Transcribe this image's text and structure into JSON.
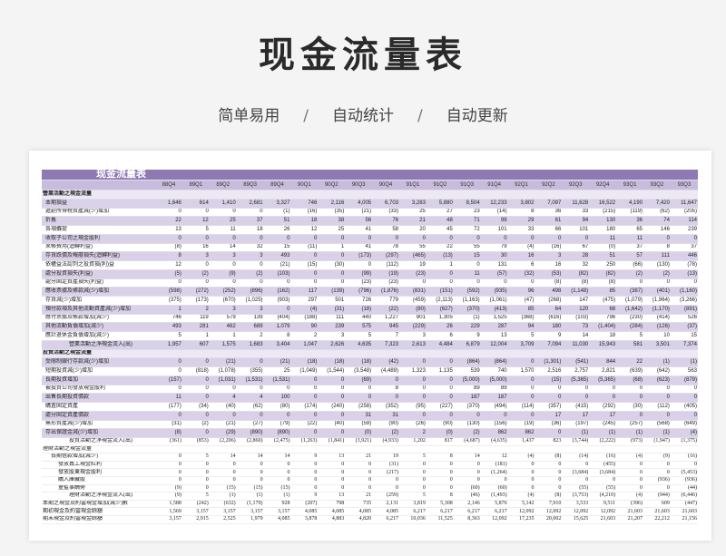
{
  "page": {
    "title": "现金流量表",
    "subtitle": [
      "简单易用",
      "自动统计",
      "自动更新"
    ],
    "separator": "/"
  },
  "sheet": {
    "title": "现金流量表",
    "periods": [
      "88Q4",
      "89Q1",
      "89Q2",
      "89Q3",
      "89Q4",
      "90Q1",
      "90Q2",
      "90Q3",
      "90Q4",
      "91Q1",
      "91Q2",
      "91Q3",
      "91Q4",
      "92Q1",
      "92Q2",
      "92Q3",
      "92Q4",
      "93Q1",
      "93Q2",
      "93Q3"
    ],
    "rows": [
      {
        "style": "sec",
        "label": "營業活動之現金流量",
        "values": []
      },
      {
        "style": "shade",
        "label": "本期損益",
        "values": [
          "1,646",
          "614",
          "1,410",
          "2,681",
          "3,327",
          "746",
          "2,116",
          "4,005",
          "6,703",
          "3,283",
          "5,880",
          "8,504",
          "12,233",
          "3,802",
          "7,097",
          "11,628",
          "16,522",
          "4,190",
          "7,420",
          "11,647"
        ]
      },
      {
        "style": "white",
        "label": "遞延所得稅資產減(少)增加",
        "values": [
          "0",
          "0",
          "0",
          "0",
          "(1)",
          "(16)",
          "(35)",
          "(21)",
          "(33)",
          "25",
          "27",
          "23",
          "(14)",
          "8",
          "36",
          "33",
          "(215)",
          "(119)",
          "(62)",
          "(205)"
        ]
      },
      {
        "style": "shade",
        "label": "折舊",
        "values": [
          "22",
          "12",
          "25",
          "37",
          "51",
          "18",
          "38",
          "56",
          "76",
          "21",
          "48",
          "71",
          "98",
          "29",
          "61",
          "94",
          "130",
          "36",
          "74",
          "114"
        ]
      },
      {
        "style": "white",
        "label": "各項攤提",
        "values": [
          "13",
          "5",
          "11",
          "18",
          "26",
          "12",
          "25",
          "41",
          "58",
          "20",
          "45",
          "72",
          "101",
          "33",
          "66",
          "101",
          "180",
          "65",
          "146",
          "239"
        ]
      },
      {
        "style": "shade",
        "label": "收取子公司之現金股利",
        "values": [
          "0",
          "0",
          "0",
          "0",
          "0",
          "0",
          "0",
          "0",
          "0",
          "0",
          "0",
          "0",
          "0",
          "0",
          "0",
          "0",
          "11",
          "11",
          "0",
          "0"
        ]
      },
      {
        "style": "white",
        "label": "呆帳費用(迴轉利益)",
        "values": [
          "(8)",
          "16",
          "14",
          "32",
          "15",
          "(11)",
          "1",
          "41",
          "78",
          "55",
          "22",
          "55",
          "79",
          "(4)",
          "(16)",
          "67",
          "(0)",
          "37",
          "8",
          "37"
        ]
      },
      {
        "style": "shade",
        "label": "存貨跌價及報廢損失(迴轉利益)",
        "values": [
          "8",
          "3",
          "3",
          "3",
          "493",
          "0",
          "0",
          "(173)",
          "(297)",
          "(465)",
          "(13)",
          "15",
          "30",
          "16",
          "3",
          "28",
          "51",
          "57",
          "111",
          "446"
        ]
      },
      {
        "style": "white",
        "label": "依權益法認列之投資損(利)益",
        "values": [
          "12",
          "0",
          "0",
          "0",
          "(21)",
          "(15)",
          "(30)",
          "0",
          "(112)",
          "19",
          "1",
          "0",
          "131",
          "6",
          "16",
          "32",
          "250",
          "(66)",
          "(130)",
          "(78)"
        ]
      },
      {
        "style": "shade",
        "label": "處分投資損失(利益)",
        "values": [
          "(5)",
          "(2)",
          "(9)",
          "(2)",
          "(103)",
          "0",
          "0",
          "(99)",
          "(19)",
          "(23)",
          "0",
          "11",
          "(57)",
          "(32)",
          "(53)",
          "(82)",
          "(82)",
          "(2)",
          "(2)",
          "(13)"
        ]
      },
      {
        "style": "white",
        "label": "處分固定資產損失(利益)",
        "values": [
          "0",
          "0",
          "0",
          "0",
          "0",
          "0",
          "0",
          "(23)",
          "(23)",
          "0",
          "0",
          "0",
          "0",
          "0",
          "(8)",
          "(8)",
          "(8)",
          "0",
          "0",
          "0"
        ]
      },
      {
        "style": "shade",
        "label": "應收票據及帳款減(少)增加",
        "values": [
          "(598)",
          "(272)",
          "(252)",
          "(896)",
          "(162)",
          "117",
          "(139)",
          "(796)",
          "(1,876)",
          "(831)",
          "(151)",
          "(592)",
          "(935)",
          "96",
          "498",
          "(1,148)",
          "85",
          "(387)",
          "(401)",
          "(1,160)"
        ]
      },
      {
        "style": "white",
        "label": "存貨減(少)增加",
        "values": [
          "(375)",
          "(173)",
          "(670)",
          "(1,025)",
          "(903)",
          "297",
          "501",
          "726",
          "779",
          "(459)",
          "(2,113)",
          "(1,163)",
          "(1,061)",
          "(47)",
          "(268)",
          "147",
          "(475)",
          "(1,079)",
          "(1,964)",
          "(3,266)"
        ]
      },
      {
        "style": "shade",
        "label": "預付款項及其他流動資產減(少)增加",
        "values": [
          "1",
          "2",
          "3",
          "3",
          "0",
          "(4)",
          "(31)",
          "(18)",
          "(22)",
          "(80)",
          "(627)",
          "(370)",
          "(413)",
          "85",
          "64",
          "120",
          "68",
          "(1,642)",
          "(1,170)",
          "(891)"
        ]
      },
      {
        "style": "white",
        "label": "應付票據及帳款增加(減少)",
        "values": [
          "746",
          "119",
          "579",
          "139",
          "(404)",
          "(188)",
          "111",
          "440",
          "1,227",
          "801",
          "1,305",
          "(1)",
          "1,525",
          "(368)",
          "(616)",
          "(103)",
          "796",
          "(230)",
          "(414)",
          "526"
        ]
      },
      {
        "style": "shade",
        "label": "其他流動負債增加(減少)",
        "values": [
          "493",
          "281",
          "462",
          "689",
          "1,079",
          "90",
          "239",
          "575",
          "945",
          "(229)",
          "26",
          "229",
          "287",
          "94",
          "180",
          "73",
          "(1,404)",
          "(284)",
          "(126)",
          "(37)"
        ]
      },
      {
        "style": "white",
        "label": "應計退休金負債增加(減少)",
        "values": [
          "5",
          "1",
          "1",
          "2",
          "8",
          "2",
          "3",
          "5",
          "7",
          "3",
          "6",
          "9",
          "13",
          "5",
          "9",
          "14",
          "18",
          "5",
          "10",
          "15"
        ]
      },
      {
        "style": "shade total",
        "label": "營業活動之淨現金流入(出)",
        "values": [
          "1,957",
          "607",
          "1,575",
          "1,683",
          "3,404",
          "1,047",
          "2,626",
          "4,635",
          "7,323",
          "2,613",
          "4,484",
          "6,879",
          "12,004",
          "3,709",
          "7,094",
          "11,030",
          "15,943",
          "581",
          "3,501",
          "7,374"
        ]
      },
      {
        "style": "sec",
        "label": "投資活動之現金流量",
        "values": []
      },
      {
        "style": "shade",
        "label": "受限制銀行存款減(少)增加",
        "values": [
          "0",
          "0",
          "(21)",
          "0",
          "(21)",
          "(18)",
          "(18)",
          "(18)",
          "(42)",
          "0",
          "0",
          "(864)",
          "(864)",
          "0",
          "(1,301)",
          "(541)",
          "844",
          "22",
          "(1)",
          "(1)"
        ]
      },
      {
        "style": "white",
        "label": "短期投資減(少)增加",
        "values": [
          "0",
          "(818)",
          "(1,078)",
          "(355)",
          "25",
          "(1,049)",
          "(1,544)",
          "(3,548)",
          "(4,489)",
          "1,323",
          "1,135",
          "539",
          "740",
          "1,570",
          "2,516",
          "2,757",
          "2,821",
          "(639)",
          "(642)",
          "563"
        ]
      },
      {
        "style": "shade",
        "label": "長期投資增加",
        "values": [
          "(157)",
          "0",
          "(1,031)",
          "(1,531)",
          "(1,531)",
          "0",
          "0",
          "(69)",
          "0",
          "0",
          "0",
          "(5,000)",
          "(5,000)",
          "0",
          "(15)",
          "(5,365)",
          "(5,365)",
          "(68)",
          "(623)",
          "(879)"
        ]
      },
      {
        "style": "white",
        "label": "被投資公司發放現金股利",
        "values": [
          "0",
          "0",
          "0",
          "0",
          "0",
          "0",
          "0",
          "0",
          "8",
          "0",
          "0",
          "89",
          "89",
          "0",
          "0",
          "0",
          "0",
          "0",
          "0",
          "0"
        ]
      },
      {
        "style": "shade",
        "label": "出售長期投資價款",
        "values": [
          "11",
          "0",
          "4",
          "4",
          "100",
          "0",
          "0",
          "0",
          "0",
          "0",
          "0",
          "187",
          "187",
          "0",
          "0",
          "0",
          "0",
          "0",
          "0",
          "0"
        ]
      },
      {
        "style": "white",
        "label": "購置固定資產",
        "values": [
          "(177)",
          "(34)",
          "(40)",
          "(62)",
          "(80)",
          "(174)",
          "(240)",
          "(258)",
          "(352)",
          "(95)",
          "(227)",
          "(370)",
          "(494)",
          "(114)",
          "(357)",
          "(415)",
          "(292)",
          "(30)",
          "(112)",
          "(405)"
        ]
      },
      {
        "style": "shade",
        "label": "處分固定資產價款",
        "values": [
          "0",
          "0",
          "0",
          "0",
          "0",
          "0",
          "0",
          "31",
          "31",
          "0",
          "0",
          "0",
          "0",
          "0",
          "17",
          "17",
          "17",
          "0",
          "0",
          "0"
        ]
      },
      {
        "style": "white",
        "label": "無形資產減(少)增加",
        "values": [
          "(31)",
          "(2)",
          "(21)",
          "(27)",
          "(79)",
          "(22)",
          "(40)",
          "(59)",
          "(90)",
          "(26)",
          "(90)",
          "(130)",
          "(156)",
          "(19)",
          "(36)",
          "(197)",
          "(245)",
          "(257)",
          "(568)",
          "(649)"
        ]
      },
      {
        "style": "shade",
        "label": "存出保證金減(少)增加",
        "values": [
          "(8)",
          "0",
          "(29)",
          "(890)",
          "(890)",
          "0",
          "0",
          "(0)",
          "(2)",
          "2",
          "(0)",
          "(2)",
          "862",
          "862",
          "0",
          "(1)",
          "(1)",
          "(1)",
          "(1)",
          "(4)"
        ]
      },
      {
        "style": "lower tot",
        "label": "投資活動之淨現金流入(出)",
        "values": [
          "(361)",
          "(853)",
          "(2,206)",
          "(2,860)",
          "(2,475)",
          "(1,263)",
          "(1,841)",
          "(3,921)",
          "(4,933)",
          "1,202",
          "817",
          "(4,687)",
          "(4,635)",
          "1,437",
          "823",
          "(3,744)",
          "(2,222)",
          "(973)",
          "(1,947)",
          "(1,375)"
        ]
      },
      {
        "style": "lower",
        "label": "理財活動之現金流量",
        "values": []
      },
      {
        "style": "lower ind",
        "label": "長期借款增加(減少)",
        "values": [
          "0",
          "5",
          "14",
          "14",
          "14",
          "9",
          "13",
          "21",
          "19",
          "5",
          "8",
          "14",
          "12",
          "(4)",
          "(8)",
          "(14)",
          "(16)",
          "(4)",
          "(9)",
          "(16)"
        ]
      },
      {
        "style": "lower ind2",
        "label": "發放員工現金紅利",
        "values": [
          "0",
          "0",
          "0",
          "0",
          "0",
          "0",
          "0",
          "0",
          "(31)",
          "0",
          "0",
          "0",
          "(181)",
          "0",
          "0",
          "0",
          "(455)",
          "0",
          "0",
          "0"
        ]
      },
      {
        "style": "lower ind2",
        "label": "發放股東現金股利",
        "values": [
          "0",
          "0",
          "0",
          "0",
          "0",
          "0",
          "0",
          "0",
          "(217)",
          "0",
          "0",
          "0",
          "(1,264)",
          "0",
          "0",
          "(3,684)",
          "(3,684)",
          "0",
          "0",
          "(5,453)"
        ]
      },
      {
        "style": "lower ind2",
        "label": "購入庫藏股",
        "values": [
          "0",
          "0",
          "0",
          "0",
          "0",
          "0",
          "0",
          "0",
          "0",
          "0",
          "0",
          "0",
          "0",
          "0",
          "0",
          "0",
          "0",
          "0",
          "(936)",
          "(936)"
        ]
      },
      {
        "style": "lower ind2",
        "label": "董監事酬勞",
        "values": [
          "(9)",
          "0",
          "(15)",
          "(15)",
          "(15)",
          "0",
          "0",
          "0",
          "0",
          "0",
          "0",
          "(60)",
          "(60)",
          "0",
          "0",
          "(55)",
          "(55)",
          "0",
          "0",
          "(44)"
        ]
      },
      {
        "style": "lower tot",
        "label": "理財活動之淨現金流入(出)",
        "values": [
          "(9)",
          "5",
          "(1)",
          "(1)",
          "(1)",
          "9",
          "13",
          "21",
          "(259)",
          "5",
          "8",
          "(46)",
          "(1,493)",
          "(4)",
          "(8)",
          "(3,753)",
          "(4,210)",
          "(4)",
          "(944)",
          "(6,446)"
        ]
      },
      {
        "style": "lower",
        "label": "本期之現金及約當現金增加(減少)數",
        "values": [
          "1,588",
          "(242)",
          "(632)",
          "(1,179)",
          "928",
          "(207)",
          "798",
          "735",
          "2,131",
          "3,819",
          "5,308",
          "2,146",
          "5,876",
          "5,142",
          "7,910",
          "3,533",
          "9,511",
          "(396)",
          "609",
          "(447)"
        ]
      },
      {
        "style": "lower",
        "label": "期初現金及約當現金餘額",
        "values": [
          "1,569",
          "3,157",
          "3,157",
          "3,157",
          "3,157",
          "4,085",
          "4,085",
          "4,085",
          "4,085",
          "6,217",
          "6,217",
          "6,217",
          "6,217",
          "12,092",
          "12,092",
          "12,092",
          "12,092",
          "21,603",
          "21,603",
          "21,603"
        ]
      },
      {
        "style": "lower",
        "label": "期末現金及約當現金餘額",
        "values": [
          "3,157",
          "2,915",
          "2,525",
          "1,979",
          "4,085",
          "3,878",
          "4,883",
          "4,820",
          "6,217",
          "10,036",
          "11,525",
          "8,363",
          "12,092",
          "17,235",
          "20,002",
          "15,625",
          "21,603",
          "21,207",
          "22,212",
          "21,156"
        ]
      }
    ]
  }
}
